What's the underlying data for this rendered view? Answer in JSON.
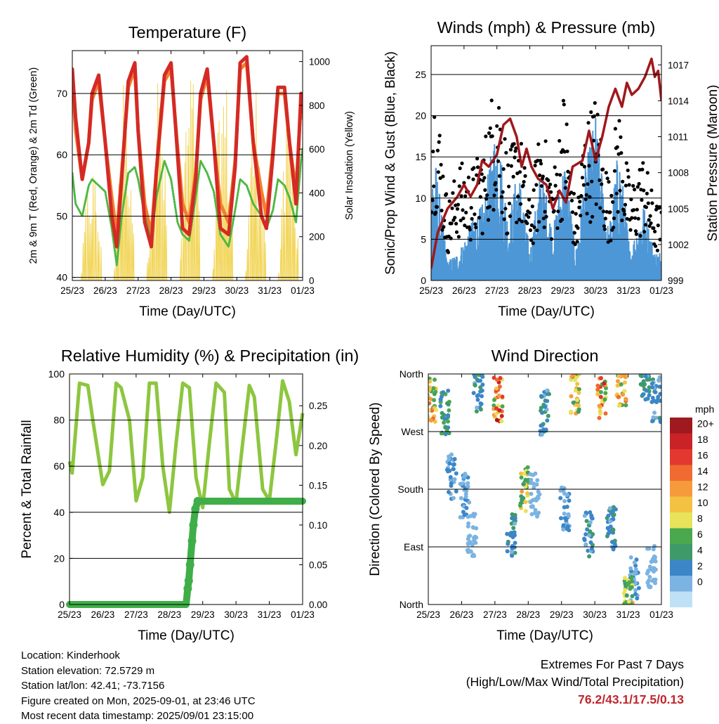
{
  "x_ticks": [
    "25/23",
    "26/23",
    "27/23",
    "28/23",
    "29/23",
    "30/23",
    "31/23",
    "01/23"
  ],
  "xlabel": "Time (Day/UTC)",
  "colors": {
    "temp_2m": "#d42a25",
    "temp_9m": "#f47d2e",
    "dewpoint": "#4db843",
    "insolation": "#f2d65c",
    "wind_sonic": "#4d97d6",
    "gust": "#000000",
    "pressure": "#a0181c",
    "rh": "#8dc63f",
    "precip": "#3fae49",
    "extremes_text": "#c0272d"
  },
  "chart_data": [
    {
      "type": "line",
      "title": "Temperature (F)",
      "ylabel": "2m & 9m T (Red, Orange) & 2m Td (Green)",
      "y2label": "Solar Insolation (Yellow)",
      "x_ticks": [
        "25/23",
        "26/23",
        "27/23",
        "28/23",
        "29/23",
        "30/23",
        "31/23",
        "01/23"
      ],
      "ylim": [
        39.5,
        77
      ],
      "yticks": [
        40,
        50,
        60,
        70
      ],
      "y2lim": [
        0,
        1050
      ],
      "y2ticks": [
        0,
        200,
        400,
        600,
        800,
        1000
      ],
      "x_days": [
        0,
        0.1,
        0.3,
        0.5,
        0.6,
        0.8,
        1.0,
        1.2,
        1.35,
        1.5,
        1.7,
        1.9,
        2.0,
        2.2,
        2.4,
        2.55,
        2.8,
        3.0,
        3.2,
        3.35,
        3.55,
        3.75,
        3.9,
        4.1,
        4.3,
        4.5,
        4.75,
        4.95,
        5.1,
        5.3,
        5.5,
        5.75,
        5.9,
        6.1,
        6.25,
        6.45,
        6.6,
        6.8,
        6.95,
        7.0
      ],
      "series": [
        {
          "name": "2m T",
          "values": [
            74,
            66,
            56,
            62,
            70,
            73,
            62,
            50,
            45,
            56,
            72,
            75,
            64,
            49,
            45,
            57,
            73,
            75,
            60,
            48,
            47,
            56,
            70,
            74,
            62,
            48,
            47,
            58,
            75,
            76,
            62,
            50,
            48,
            60,
            71,
            71,
            62,
            52,
            70,
            67
          ]
        },
        {
          "name": "9m T",
          "values": [
            72,
            64,
            56,
            62,
            69,
            72,
            62,
            53,
            47,
            57,
            71,
            74,
            64,
            52,
            47,
            57,
            72,
            74,
            61,
            52,
            49,
            57,
            69,
            73,
            62,
            52,
            49,
            59,
            74,
            75,
            62,
            54,
            50,
            61,
            70,
            70,
            62,
            54,
            69,
            66
          ]
        },
        {
          "name": "2m Td",
          "values": [
            57,
            52,
            50,
            55,
            56,
            55,
            54,
            48,
            42,
            50,
            57,
            58,
            56,
            50,
            46,
            53,
            59,
            56,
            49,
            47,
            46,
            53,
            59,
            57,
            54,
            47,
            45,
            51,
            56,
            55,
            52,
            50,
            48,
            51,
            56,
            55,
            53,
            49,
            59,
            61
          ]
        }
      ],
      "insolation_peaks": [
        0.6,
        1.6,
        2.6,
        3.6,
        4.6,
        5.6,
        6.6
      ],
      "insolation_max": [
        560,
        1000,
        1000,
        1000,
        1000,
        930,
        780
      ]
    },
    {
      "type": "line",
      "title": "Winds (mph) & Pressure (mb)",
      "ylabel": "Sonic/Prop Wind & Gust (Blue, Black)",
      "y2label": "Station Pressure (Maroon)",
      "x_ticks": [
        "25/23",
        "26/23",
        "27/23",
        "28/23",
        "29/23",
        "30/23",
        "31/23",
        "01/23"
      ],
      "ylim": [
        0,
        28.5
      ],
      "yticks": [
        0,
        5,
        10,
        15,
        20,
        25
      ],
      "y2lim": [
        999,
        1018.6
      ],
      "y2ticks": [
        999,
        1002,
        1005,
        1008,
        1011,
        1014,
        1017
      ],
      "pressure": {
        "name": "Station Pressure",
        "x_days": [
          0,
          0.2,
          0.5,
          0.8,
          1.0,
          1.2,
          1.4,
          1.55,
          1.75,
          2.0,
          2.2,
          2.4,
          2.6,
          2.75,
          2.9,
          3.05,
          3.25,
          3.5,
          3.7,
          3.9,
          4.1,
          4.3,
          4.6,
          4.8,
          5.0,
          5.2,
          5.4,
          5.6,
          5.8,
          5.95,
          6.1,
          6.3,
          6.5,
          6.7,
          6.8,
          6.9,
          7.0
        ],
        "values": [
          1000,
          1003,
          1005,
          1006,
          1007,
          1006,
          1007,
          1009,
          1008.5,
          1009.5,
          1012,
          1012.5,
          1011,
          1008.5,
          1010,
          1008.5,
          1007.5,
          1007,
          1005,
          1006.5,
          1005.5,
          1008.5,
          1009,
          1011.5,
          1009,
          1011,
          1013.5,
          1015,
          1013.5,
          1015.5,
          1014.5,
          1015,
          1016,
          1017.5,
          1016,
          1016.5,
          1014
        ]
      },
      "wind_days": [
        0.15,
        0.5,
        0.85,
        1.2,
        1.6,
        2.0,
        2.35,
        2.65,
        3.0,
        3.35,
        3.7,
        4.05,
        4.4,
        4.65,
        5.0,
        5.4,
        5.7,
        6.05,
        6.45,
        6.8
      ],
      "wind_values": [
        12,
        2,
        3,
        6,
        8,
        17,
        6,
        12,
        3,
        12,
        5,
        13,
        3,
        11,
        17,
        5,
        14,
        3,
        8,
        3
      ],
      "gust_values": [
        23,
        9,
        14,
        13,
        16,
        26,
        14,
        19,
        9,
        19,
        12,
        23,
        8,
        18,
        22,
        12,
        21,
        11,
        15,
        9
      ]
    },
    {
      "type": "line",
      "title": "Relative Humidity (%) & Precipitation (in)",
      "ylabel": "Percent & Total Rainfall",
      "x_ticks": [
        "25/23",
        "26/23",
        "27/23",
        "28/23",
        "29/23",
        "30/23",
        "31/23",
        "01/23"
      ],
      "ylim": [
        0,
        100
      ],
      "yticks": [
        0,
        20,
        40,
        60,
        80,
        100
      ],
      "y2lim": [
        0,
        0.29
      ],
      "y2ticks": [
        "0.00",
        "0.05",
        "0.10",
        "0.15",
        "0.20",
        "0.25"
      ],
      "rh": {
        "name": "RH",
        "x_days": [
          0,
          0.08,
          0.3,
          0.55,
          0.7,
          1.0,
          1.2,
          1.4,
          1.55,
          1.8,
          2.0,
          2.2,
          2.4,
          2.6,
          2.8,
          3.0,
          3.2,
          3.4,
          3.6,
          3.8,
          4.0,
          4.2,
          4.4,
          4.65,
          4.8,
          5.0,
          5.2,
          5.4,
          5.55,
          5.8,
          6.0,
          6.2,
          6.4,
          6.6,
          6.8,
          7.0
        ],
        "values": [
          62,
          57,
          96,
          95,
          80,
          52,
          58,
          96,
          94,
          80,
          45,
          55,
          96,
          96,
          60,
          40,
          70,
          96,
          94,
          55,
          42,
          70,
          96,
          92,
          50,
          44,
          70,
          95,
          90,
          50,
          45,
          70,
          97,
          88,
          65,
          83
        ]
      },
      "precip": {
        "name": "Total Rainfall",
        "x_days": [
          0,
          3.5,
          3.55,
          3.58,
          3.62,
          3.68,
          3.72,
          3.78,
          3.85,
          4.2,
          5.0,
          7.0
        ],
        "values": [
          0,
          0,
          0.02,
          0.03,
          0.05,
          0.08,
          0.1,
          0.12,
          0.13,
          0.13,
          0.13,
          0.13
        ]
      }
    },
    {
      "type": "scatter",
      "title": "Wind Direction",
      "ylabel": "Direction (Colored By Speed)",
      "x_ticks": [
        "25/23",
        "26/23",
        "27/23",
        "28/23",
        "29/23",
        "30/23",
        "31/23",
        "01/23"
      ],
      "ylim": [
        0,
        360
      ],
      "yticks": [
        "North",
        "East",
        "South",
        "West",
        "North"
      ],
      "colorbar_title": "mph",
      "colorbar_labels": [
        "20+",
        "18",
        "16",
        "14",
        "12",
        "10",
        "8",
        "6",
        "4",
        "2",
        "0"
      ],
      "colorbar_colors": [
        "#9e1a1f",
        "#c92327",
        "#e2382f",
        "#f06a31",
        "#f59b3c",
        "#f4c243",
        "#e8e35a",
        "#4aa84f",
        "#3f9a6a",
        "#3c86c8",
        "#7bb3e2",
        "#bfe1f6"
      ],
      "clusters": [
        {
          "day": 0.1,
          "dir": 320,
          "spd": 11
        },
        {
          "day": 0.5,
          "dir": 300,
          "spd": 6
        },
        {
          "day": 0.7,
          "dir": 200,
          "spd": 3
        },
        {
          "day": 1.1,
          "dir": 170,
          "spd": 3
        },
        {
          "day": 1.3,
          "dir": 110,
          "spd": 2
        },
        {
          "day": 1.5,
          "dir": 335,
          "spd": 5
        },
        {
          "day": 2.1,
          "dir": 320,
          "spd": 15
        },
        {
          "day": 2.5,
          "dir": 110,
          "spd": 4
        },
        {
          "day": 2.9,
          "dir": 180,
          "spd": 9
        },
        {
          "day": 3.2,
          "dir": 170,
          "spd": 2
        },
        {
          "day": 3.5,
          "dir": 300,
          "spd": 4
        },
        {
          "day": 4.1,
          "dir": 150,
          "spd": 3
        },
        {
          "day": 4.4,
          "dir": 330,
          "spd": 10
        },
        {
          "day": 4.8,
          "dir": 110,
          "spd": 4
        },
        {
          "day": 5.2,
          "dir": 320,
          "spd": 14
        },
        {
          "day": 5.5,
          "dir": 120,
          "spd": 4
        },
        {
          "day": 5.8,
          "dir": 345,
          "spd": 11
        },
        {
          "day": 6.2,
          "dir": 40,
          "spd": 3
        },
        {
          "day": 6.5,
          "dir": 350,
          "spd": 5
        },
        {
          "day": 6.85,
          "dir": 320,
          "spd": 4
        },
        {
          "day": 6.0,
          "dir": 10,
          "spd": 10
        },
        {
          "day": 6.7,
          "dir": 60,
          "spd": 2
        }
      ]
    }
  ],
  "info": {
    "location": "Location: Kinderhook",
    "elevation": "Station elevation: 72.5729 m",
    "latlon": "Station lat/lon: 42.41; -73.7156",
    "created": "Figure created on Mon, 2025-09-01, at 23:46 UTC",
    "timestamp": "Most recent data timestamp: 2025/09/01 23:15:00"
  },
  "extremes": {
    "title": "Extremes For Past 7 Days",
    "subtitle": "(High/Low/Max Wind/Total Precipitation)",
    "values": "76.2/43.1/17.5/0.13"
  }
}
